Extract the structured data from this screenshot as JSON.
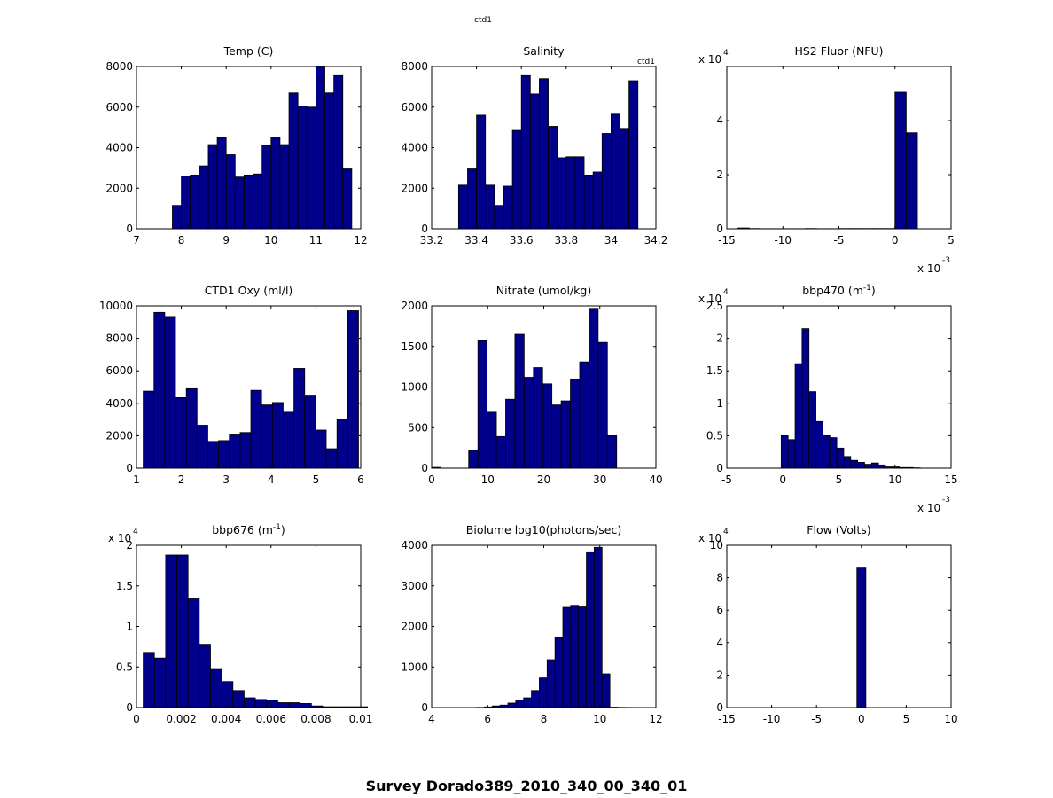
{
  "figure": {
    "title": "Survey Dorado389_2010_340_00_340_01",
    "top_label": "ctd1",
    "corner_label": "ctd1"
  },
  "colors": {
    "bar_fill": "#00008b",
    "bar_edge": "#000000",
    "axes": "#000000",
    "background": "#ffffff"
  },
  "chart_data": [
    {
      "type": "bar",
      "title": "Temp (C)",
      "xlim": [
        7,
        12
      ],
      "ylim": [
        0,
        8000
      ],
      "xticks": [
        "7",
        "8",
        "9",
        "10",
        "11",
        "12"
      ],
      "yticks": [
        "0",
        "2000",
        "4000",
        "6000",
        "8000"
      ],
      "x_exponent": "",
      "y_exponent": "",
      "bin_start": 7.8,
      "bin_width": 0.2,
      "values": [
        1150,
        2600,
        2650,
        3100,
        4150,
        4500,
        3650,
        2550,
        2650,
        2700,
        4100,
        4500,
        4150,
        6700,
        6050,
        6000,
        8000,
        6700,
        7550,
        2950
      ]
    },
    {
      "type": "bar",
      "title": "Salinity",
      "xlim": [
        33.2,
        34.2
      ],
      "ylim": [
        0,
        8000
      ],
      "xticks": [
        "33.2",
        "33.4",
        "33.6",
        "33.8",
        "34",
        "34.2"
      ],
      "yticks": [
        "0",
        "2000",
        "4000",
        "6000",
        "8000"
      ],
      "x_exponent": "",
      "y_exponent": "",
      "bin_start": 33.32,
      "bin_width": 0.04,
      "values": [
        2150,
        2950,
        5600,
        2150,
        1150,
        2100,
        4850,
        7550,
        6650,
        7400,
        5050,
        3500,
        3550,
        3550,
        2650,
        2800,
        4700,
        5650,
        4950,
        7300
      ]
    },
    {
      "type": "bar",
      "title": "HS2 Fluor (NFU)",
      "xlim": [
        -15,
        5
      ],
      "ylim": [
        0,
        6
      ],
      "xticks": [
        "-15",
        "-10",
        "-5",
        "0",
        "5"
      ],
      "yticks": [
        "0",
        "2",
        "4"
      ],
      "x_exponent": "-3",
      "y_exponent": "4",
      "bin_start": -14,
      "bin_width": 1,
      "values": [
        0.03,
        0.01,
        0.005,
        0.005,
        0.005,
        0.005,
        0.01,
        0.005,
        0.005,
        0.01,
        0.01,
        0.01,
        0.01,
        0.01,
        5.05,
        3.55
      ]
    },
    {
      "type": "bar",
      "title": "CTD1 Oxy (ml/l)",
      "xlim": [
        1,
        6
      ],
      "ylim": [
        0,
        10000
      ],
      "xticks": [
        "1",
        "2",
        "3",
        "4",
        "5",
        "6"
      ],
      "yticks": [
        "0",
        "2000",
        "4000",
        "6000",
        "8000",
        "10000"
      ],
      "x_exponent": "",
      "y_exponent": "",
      "bin_start": 1.15,
      "bin_width": 0.24,
      "values": [
        4750,
        9600,
        9350,
        4350,
        4900,
        2650,
        1650,
        1700,
        2050,
        2200,
        4800,
        3900,
        4050,
        3450,
        6150,
        4450,
        2350,
        1200,
        3000,
        9700
      ]
    },
    {
      "type": "bar",
      "title": "Nitrate (umol/kg)",
      "xlim": [
        0,
        40
      ],
      "ylim": [
        0,
        2000
      ],
      "xticks": [
        "0",
        "10",
        "20",
        "30",
        "40"
      ],
      "yticks": [
        "0",
        "500",
        "1000",
        "1500",
        "2000"
      ],
      "x_exponent": "",
      "y_exponent": "",
      "bin_start": 0,
      "bin_width": 1.65,
      "values": [
        10,
        0,
        0,
        0,
        220,
        1570,
        690,
        390,
        850,
        1650,
        1120,
        1240,
        1040,
        780,
        830,
        1100,
        1310,
        1970,
        1550,
        400
      ]
    },
    {
      "type": "bar",
      "title": "bbp470 (m",
      "title_sup": "-1",
      "title_end": ")",
      "xlim": [
        -5,
        15
      ],
      "ylim": [
        0,
        2.5
      ],
      "xticks": [
        "-5",
        "0",
        "5",
        "10",
        "15"
      ],
      "yticks": [
        "0",
        "0.5",
        "1",
        "1.5",
        "2",
        "2.5"
      ],
      "x_exponent": "-3",
      "y_exponent": "4",
      "bin_start": -0.15,
      "bin_width": 0.62,
      "values": [
        0.5,
        0.44,
        1.61,
        2.15,
        1.18,
        0.72,
        0.5,
        0.47,
        0.31,
        0.18,
        0.12,
        0.09,
        0.06,
        0.08,
        0.05,
        0.02,
        0.02,
        0.01,
        0.01,
        0.005
      ]
    },
    {
      "type": "bar",
      "title": "bbp676 (m",
      "title_sup": "-1",
      "title_end": ")",
      "xlim": [
        0,
        0.01
      ],
      "ylim": [
        0,
        2
      ],
      "xticks": [
        "0",
        "0.002",
        "0.004",
        "0.006",
        "0.008",
        "0.01"
      ],
      "yticks": [
        "0",
        "0.5",
        "1",
        "1.5",
        "2"
      ],
      "x_exponent": "",
      "y_exponent": "4",
      "bin_start": 0.0003,
      "bin_width": 0.0005,
      "values": [
        0.68,
        0.61,
        1.88,
        1.88,
        1.35,
        0.78,
        0.48,
        0.32,
        0.21,
        0.12,
        0.1,
        0.09,
        0.06,
        0.06,
        0.05,
        0.02,
        0.01,
        0.01,
        0.01,
        0.01
      ]
    },
    {
      "type": "bar",
      "title": "Biolume log10(photons/sec)",
      "xlim": [
        4,
        12
      ],
      "ylim": [
        0,
        4000
      ],
      "xticks": [
        "4",
        "6",
        "8",
        "10",
        "12"
      ],
      "yticks": [
        "0",
        "1000",
        "2000",
        "3000",
        "4000"
      ],
      "x_exponent": "",
      "y_exponent": "",
      "bin_start": 5.6,
      "bin_width": 0.28,
      "values": [
        5,
        15,
        40,
        60,
        110,
        180,
        240,
        420,
        730,
        1180,
        1740,
        2470,
        2520,
        2480,
        3840,
        3950,
        830,
        10,
        5,
        3
      ]
    },
    {
      "type": "bar",
      "title": "Flow (Volts)",
      "xlim": [
        -15,
        10
      ],
      "ylim": [
        0,
        10
      ],
      "xticks": [
        "-15",
        "-10",
        "-5",
        "0",
        "5",
        "10"
      ],
      "yticks": [
        "0",
        "2",
        "4",
        "6",
        "8",
        "10"
      ],
      "x_exponent": "",
      "y_exponent": "4",
      "bin_start": -0.5,
      "bin_width": 1,
      "values": [
        8.6
      ]
    }
  ]
}
